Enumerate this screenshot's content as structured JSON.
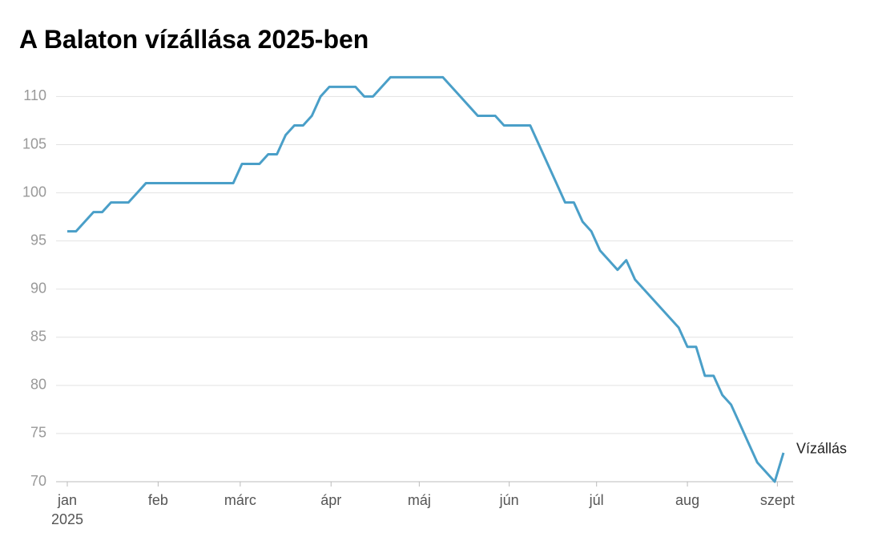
{
  "chart_data": {
    "type": "line",
    "title": "A Balaton vízállása 2025-ben",
    "series": [
      {
        "name": "Vízállás",
        "color": "#4a9fc8",
        "values": [
          96,
          96,
          97,
          98,
          98,
          99,
          99,
          99,
          100,
          101,
          101,
          101,
          101,
          101,
          101,
          101,
          101,
          101,
          101,
          101,
          103,
          103,
          103,
          104,
          104,
          106,
          107,
          107,
          108,
          110,
          111,
          111,
          111,
          111,
          110,
          110,
          111,
          112,
          112,
          112,
          112,
          112,
          112,
          112,
          111,
          110,
          109,
          108,
          108,
          108,
          107,
          107,
          107,
          107,
          105,
          103,
          101,
          99,
          99,
          97,
          96,
          94,
          93,
          92,
          93,
          91,
          90,
          89,
          88,
          87,
          86,
          84,
          84,
          81,
          81,
          79,
          78,
          76,
          74,
          72,
          71,
          70,
          73
        ]
      }
    ],
    "xlim": [
      0,
      82
    ],
    "xticks": [
      {
        "value": 0,
        "label": "jan 2025"
      },
      {
        "value": 10.4,
        "label": "feb"
      },
      {
        "value": 19.8,
        "label": "márc"
      },
      {
        "value": 30.2,
        "label": "ápr"
      },
      {
        "value": 40.3,
        "label": "máj"
      },
      {
        "value": 50.6,
        "label": "jún"
      },
      {
        "value": 60.6,
        "label": "júl"
      },
      {
        "value": 71,
        "label": "aug"
      },
      {
        "value": 81.3,
        "label": "szept"
      }
    ],
    "ylim": [
      70,
      112
    ],
    "yticks": [
      70,
      75,
      80,
      85,
      90,
      95,
      100,
      105,
      110
    ],
    "grid": true
  }
}
